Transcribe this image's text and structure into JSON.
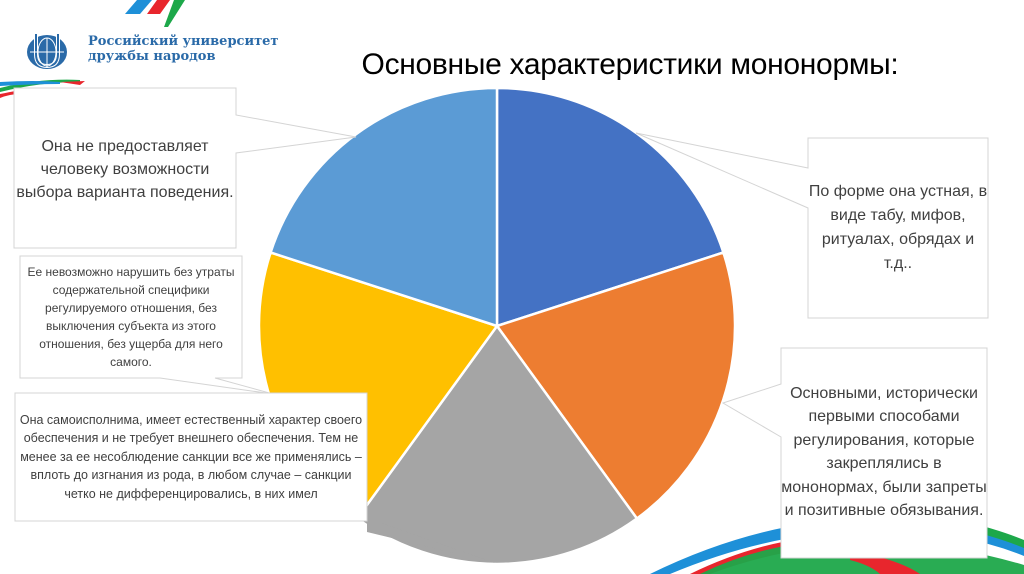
{
  "header": {
    "logo_line1": "Российский университет",
    "logo_line2": "дружбы народов",
    "title": "Основные характеристики мононормы:"
  },
  "colors": {
    "slice_dark_blue": "#4472C4",
    "slice_orange": "#ED7D31",
    "slice_gray": "#A5A5A5",
    "slice_yellow": "#FFC000",
    "slice_light_blue": "#5B9BD5",
    "callout_border": "#d0d0d0",
    "callout_text": "#404040",
    "logo_blue": "#2a6aa8",
    "deco_red": "#e8262d",
    "deco_green": "#1da84a",
    "deco_blue": "#1e90d8"
  },
  "callouts": {
    "light_blue": "Она не предоставляет человеку возможности выбора варианта поведения.",
    "yellow": "Ее невозможно нарушить без утраты содержательной специфики регулируемого отношения, без выключения субъекта из этого отношения, без ущерба для него самого.",
    "gray": "Она самоисполнима, имеет естественный характер своего обеспечения и не требует внешнего обеспечения. Тем не менее за ее несоблюдение санкции все же применялись – вплоть до изгнания из рода, в любом случае – санкции четко не дифференцировались, в них имел",
    "dark_blue": "По форме она устная, в виде табу, мифов, ритуалах, обрядах и т.д..",
    "orange": "Основными, исторически первыми способами регулирования, которые закреплялись в мононормах, были запреты и позитивные обязывания."
  },
  "chart_data": {
    "type": "pie",
    "title": "Основные характеристики мононормы:",
    "start_angle_deg": 0,
    "direction": "clockwise",
    "center": [
      497,
      326
    ],
    "radius": 238,
    "categories": [
      "По форме она устная, в виде табу, мифов, ритуалах, обрядах и т.д..",
      "Основными, исторически первыми способами регулирования, которые закреплялись в мононормах, были запреты и позитивные обязывания.",
      "Она самоисполнима, имеет естественный характер своего обеспечения и не требует внешнего обеспечения...",
      "Ее невозможно нарушить без утраты содержательной специфики регулируемого отношения...",
      "Она не предоставляет человеку возможности выбора варианта поведения."
    ],
    "values": [
      20,
      20,
      20,
      20,
      20
    ],
    "slice_colors": [
      "#4472C4",
      "#ED7D31",
      "#A5A5A5",
      "#FFC000",
      "#5B9BD5"
    ],
    "legend": "none (data callouts)",
    "grid": false
  }
}
